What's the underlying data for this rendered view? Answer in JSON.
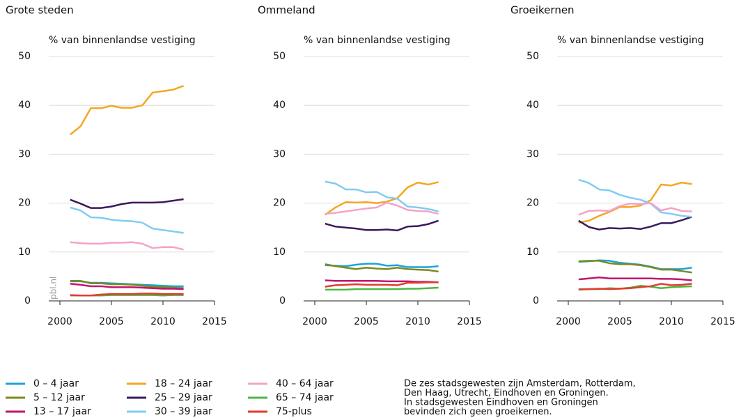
{
  "chart_data": [
    {
      "type": "line",
      "title": "Grote steden",
      "ylabel": "% van binnenlandse vestiging",
      "annotation": "pbl.nl",
      "x": [
        2001,
        2002,
        2003,
        2004,
        2005,
        2006,
        2007,
        2008,
        2009,
        2010,
        2011,
        2012
      ],
      "xlim": [
        2000,
        2015
      ],
      "xticks": [
        2000,
        2005,
        2010,
        2015
      ],
      "ylim": [
        0,
        50
      ],
      "yticks": [
        0,
        10,
        20,
        30,
        40,
        50
      ],
      "grid": true,
      "series": [
        {
          "name": "0 – 4 jaar",
          "color": "#1ba3dc",
          "values": [
            4,
            4,
            3.7,
            3.7,
            3.6,
            3.5,
            3.4,
            3.3,
            3.2,
            3.1,
            3,
            3
          ]
        },
        {
          "name": "5 – 12 jaar",
          "color": "#7b8b1e",
          "values": [
            4.1,
            4.1,
            3.6,
            3.6,
            3.4,
            3.4,
            3.3,
            3.1,
            2.9,
            2.8,
            2.7,
            2.6
          ]
        },
        {
          "name": "13 – 17 jaar",
          "color": "#c0166e",
          "values": [
            3.5,
            3.3,
            3,
            3,
            2.8,
            2.8,
            2.8,
            2.7,
            2.6,
            2.5,
            2.5,
            2.4
          ]
        },
        {
          "name": "18 – 24 jaar",
          "color": "#f5a623",
          "values": [
            34,
            35.7,
            39.4,
            39.4,
            39.9,
            39.5,
            39.5,
            40,
            42.6,
            42.9,
            43.2,
            44
          ]
        },
        {
          "name": "25 – 29 jaar",
          "color": "#3b1a5c",
          "values": [
            20.7,
            19.9,
            19,
            19,
            19.3,
            19.8,
            20.1,
            20.1,
            20.1,
            20.2,
            20.5,
            20.8
          ]
        },
        {
          "name": "30 – 39 jaar",
          "color": "#80cdef",
          "values": [
            19.1,
            18.5,
            17.1,
            17,
            16.6,
            16.4,
            16.3,
            16,
            14.8,
            14.5,
            14.2,
            13.9
          ]
        },
        {
          "name": "40 – 64 jaar",
          "color": "#f4a3c8",
          "values": [
            12,
            11.8,
            11.7,
            11.7,
            11.9,
            11.9,
            12,
            11.7,
            10.8,
            11,
            11,
            10.5
          ]
        },
        {
          "name": "65 – 74 jaar",
          "color": "#4cb748",
          "values": [
            1.1,
            1.1,
            1.1,
            1.1,
            1.2,
            1.2,
            1.2,
            1.2,
            1.2,
            1.1,
            1.2,
            1.2
          ]
        },
        {
          "name": "75-plus",
          "color": "#e53a2f",
          "values": [
            1.2,
            1.1,
            1.1,
            1.3,
            1.4,
            1.4,
            1.4,
            1.5,
            1.5,
            1.4,
            1.4,
            1.4
          ]
        }
      ]
    },
    {
      "type": "line",
      "title": "Ommeland",
      "ylabel": "% van binnenlandse vestiging",
      "x": [
        2001,
        2002,
        2003,
        2004,
        2005,
        2006,
        2007,
        2008,
        2009,
        2010,
        2011,
        2012
      ],
      "xlim": [
        2000,
        2015
      ],
      "xticks": [
        2000,
        2005,
        2010,
        2015
      ],
      "ylim": [
        0,
        50
      ],
      "yticks": [
        0,
        10,
        20,
        30,
        40,
        50
      ],
      "grid": true,
      "series": [
        {
          "name": "0 – 4 jaar",
          "color": "#1ba3dc",
          "values": [
            7.3,
            7.2,
            7.1,
            7.4,
            7.6,
            7.6,
            7.2,
            7.3,
            6.9,
            6.9,
            6.9,
            7.1
          ]
        },
        {
          "name": "5 – 12 jaar",
          "color": "#7b8b1e",
          "values": [
            7.5,
            7.1,
            6.8,
            6.5,
            6.8,
            6.6,
            6.5,
            6.8,
            6.5,
            6.4,
            6.3,
            6
          ]
        },
        {
          "name": "13 – 17 jaar",
          "color": "#c0166e",
          "values": [
            4.2,
            4.1,
            4.1,
            4.1,
            4.1,
            4.1,
            4,
            4,
            4,
            3.9,
            3.9,
            3.8
          ]
        },
        {
          "name": "18 – 24 jaar",
          "color": "#f5a623",
          "values": [
            17.6,
            19.1,
            20.2,
            20.1,
            20.2,
            20,
            20.3,
            21,
            23.2,
            24.2,
            23.8,
            24.3
          ]
        },
        {
          "name": "25 – 29 jaar",
          "color": "#3b1a5c",
          "values": [
            15.8,
            15.2,
            15,
            14.8,
            14.5,
            14.5,
            14.6,
            14.4,
            15.2,
            15.3,
            15.7,
            16.4
          ]
        },
        {
          "name": "30 – 39 jaar",
          "color": "#80cdef",
          "values": [
            24.4,
            24,
            22.8,
            22.8,
            22.2,
            22.3,
            21.2,
            20.9,
            19.3,
            19.1,
            18.8,
            18.3
          ]
        },
        {
          "name": "40 – 64 jaar",
          "color": "#f4a3c8",
          "values": [
            17.8,
            18,
            18.3,
            18.6,
            18.9,
            19.1,
            20.1,
            19.5,
            18.6,
            18.4,
            18.3,
            17.8
          ]
        },
        {
          "name": "65 – 74 jaar",
          "color": "#4cb748",
          "values": [
            2.3,
            2.3,
            2.3,
            2.4,
            2.4,
            2.4,
            2.4,
            2.4,
            2.5,
            2.5,
            2.6,
            2.7
          ]
        },
        {
          "name": "75-plus",
          "color": "#e53a2f",
          "values": [
            2.9,
            3.2,
            3.3,
            3.4,
            3.3,
            3.3,
            3.3,
            3.2,
            3.7,
            3.7,
            3.8,
            3.8
          ]
        }
      ]
    },
    {
      "type": "line",
      "title": "Groeikernen",
      "ylabel": "% van binnenlandse vestiging",
      "x": [
        2001,
        2002,
        2003,
        2004,
        2005,
        2006,
        2007,
        2008,
        2009,
        2010,
        2011,
        2012
      ],
      "xlim": [
        2000,
        2015
      ],
      "xticks": [
        2000,
        2005,
        2010,
        2015
      ],
      "ylim": [
        0,
        50
      ],
      "yticks": [
        0,
        10,
        20,
        30,
        40,
        50
      ],
      "grid": true,
      "series": [
        {
          "name": "0 – 4 jaar",
          "color": "#1ba3dc",
          "values": [
            8,
            8.1,
            8.3,
            8.2,
            7.8,
            7.6,
            7.4,
            7,
            6.5,
            6.5,
            6.5,
            6.8
          ]
        },
        {
          "name": "5 – 12 jaar",
          "color": "#7b8b1e",
          "values": [
            8.1,
            8.2,
            8.2,
            7.7,
            7.5,
            7.5,
            7.3,
            6.9,
            6.4,
            6.4,
            6.1,
            5.8
          ]
        },
        {
          "name": "13 – 17 jaar",
          "color": "#c0166e",
          "values": [
            4.4,
            4.6,
            4.8,
            4.6,
            4.6,
            4.6,
            4.6,
            4.6,
            4.5,
            4.5,
            4.4,
            4.2
          ]
        },
        {
          "name": "18 – 24 jaar",
          "color": "#f5a623",
          "values": [
            16,
            16.4,
            17.4,
            18.2,
            19.2,
            19.2,
            19.5,
            20.6,
            23.8,
            23.6,
            24.2,
            23.9
          ]
        },
        {
          "name": "25 – 29 jaar",
          "color": "#3b1a5c",
          "values": [
            16.4,
            15.1,
            14.6,
            14.9,
            14.8,
            14.9,
            14.7,
            15.2,
            15.9,
            15.9,
            16.5,
            17.2
          ]
        },
        {
          "name": "30 – 39 jaar",
          "color": "#80cdef",
          "values": [
            24.8,
            24.1,
            22.8,
            22.6,
            21.7,
            21.1,
            20.7,
            19.9,
            18.1,
            17.8,
            17.4,
            17.2
          ]
        },
        {
          "name": "40 – 64 jaar",
          "color": "#f4a3c8",
          "values": [
            17.6,
            18.4,
            18.5,
            18.4,
            19.4,
            19.9,
            19.8,
            20,
            18.5,
            19,
            18.4,
            18.3
          ]
        },
        {
          "name": "65 – 74 jaar",
          "color": "#4cb748",
          "values": [
            2.4,
            2.4,
            2.4,
            2.6,
            2.5,
            2.7,
            3.1,
            2.9,
            2.6,
            2.8,
            2.9,
            3
          ]
        },
        {
          "name": "75-plus",
          "color": "#e53a2f",
          "values": [
            2.3,
            2.4,
            2.5,
            2.4,
            2.5,
            2.6,
            2.8,
            3,
            3.5,
            3.2,
            3.3,
            3.5
          ]
        }
      ]
    }
  ],
  "note": [
    "De zes stadsgewesten zijn Amsterdam, Rotterdam,",
    "Den Haag, Utrecht, Eindhoven en Groningen.",
    "In stadsgewesten Eindhoven en Groningen",
    "bevinden zich geen groeikernen."
  ]
}
